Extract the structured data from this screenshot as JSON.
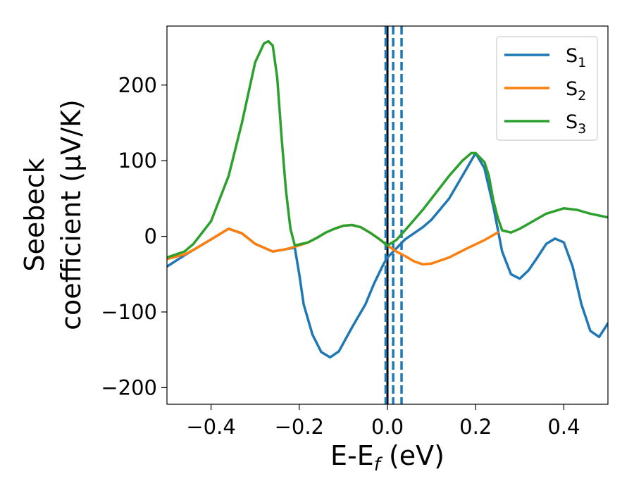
{
  "chart_data": {
    "type": "line",
    "title": "",
    "xlabel": "E-E",
    "xlabel_sub": "f",
    "xlabel_unit": " (eV)",
    "ylabel_line1": "Seebeck",
    "ylabel_line2": "coefficient  (μV/K)",
    "xlim": [
      -0.5,
      0.5
    ],
    "ylim": [
      -222,
      278
    ],
    "x_ticks": [
      -0.4,
      -0.2,
      0.0,
      0.2,
      0.4
    ],
    "x_tick_labels": [
      "−0.4",
      "−0.2",
      "0.0",
      "0.2",
      "0.4"
    ],
    "y_ticks": [
      -200,
      -100,
      0,
      100,
      200
    ],
    "y_tick_labels": [
      "−200",
      "−100",
      "0",
      "100",
      "200"
    ],
    "grid": false,
    "legend_position": "top-right",
    "vertical_lines": [
      {
        "x": 0.0,
        "style": "solid",
        "color": "#000000"
      },
      {
        "x": -0.004,
        "style": "dashed",
        "color": "#1f77b4"
      },
      {
        "x": 0.013,
        "style": "dashed",
        "color": "#1f77b4"
      },
      {
        "x": 0.032,
        "style": "dashed",
        "color": "#1f77b4"
      }
    ],
    "series": [
      {
        "name": "S",
        "name_sub": "1",
        "color": "#1f77b4",
        "points": [
          [
            -0.5,
            -40
          ],
          [
            -0.46,
            -25
          ],
          [
            -0.44,
            -18
          ],
          [
            -0.4,
            -4
          ],
          [
            -0.36,
            10
          ],
          [
            -0.33,
            4
          ],
          [
            -0.3,
            -10
          ],
          [
            -0.26,
            -20
          ],
          [
            -0.23,
            -17
          ],
          [
            -0.21,
            -15
          ],
          [
            -0.2,
            -50
          ],
          [
            -0.19,
            -90
          ],
          [
            -0.17,
            -130
          ],
          [
            -0.15,
            -153
          ],
          [
            -0.13,
            -160
          ],
          [
            -0.11,
            -152
          ],
          [
            -0.08,
            -120
          ],
          [
            -0.05,
            -90
          ],
          [
            -0.03,
            -62
          ],
          [
            -0.01,
            -38
          ],
          [
            0.0,
            -28
          ],
          [
            0.02,
            -16
          ],
          [
            0.04,
            -4
          ],
          [
            0.08,
            12
          ],
          [
            0.1,
            22
          ],
          [
            0.14,
            50
          ],
          [
            0.18,
            90
          ],
          [
            0.2,
            110
          ],
          [
            0.22,
            90
          ],
          [
            0.24,
            40
          ],
          [
            0.25,
            10
          ],
          [
            0.26,
            -20
          ],
          [
            0.28,
            -50
          ],
          [
            0.3,
            -56
          ],
          [
            0.32,
            -45
          ],
          [
            0.34,
            -28
          ],
          [
            0.36,
            -10
          ],
          [
            0.38,
            -3
          ],
          [
            0.4,
            -8
          ],
          [
            0.42,
            -40
          ],
          [
            0.44,
            -90
          ],
          [
            0.46,
            -125
          ],
          [
            0.48,
            -133
          ],
          [
            0.5,
            -115
          ]
        ]
      },
      {
        "name": "S",
        "name_sub": "2",
        "color": "#ff7f0e",
        "points": [
          [
            -0.5,
            -30
          ],
          [
            -0.46,
            -24
          ],
          [
            -0.44,
            -18
          ],
          [
            -0.4,
            -4
          ],
          [
            -0.36,
            10
          ],
          [
            -0.33,
            4
          ],
          [
            -0.3,
            -10
          ],
          [
            -0.26,
            -20
          ],
          [
            -0.23,
            -17
          ],
          [
            -0.2,
            -12
          ],
          [
            -0.18,
            -8
          ],
          [
            -0.16,
            -2
          ],
          [
            -0.14,
            5
          ],
          [
            -0.12,
            10
          ],
          [
            -0.1,
            14
          ],
          [
            -0.08,
            15
          ],
          [
            -0.06,
            12
          ],
          [
            -0.04,
            5
          ],
          [
            -0.02,
            -3
          ],
          [
            0.0,
            -12
          ],
          [
            0.02,
            -20
          ],
          [
            0.04,
            -26
          ],
          [
            0.06,
            -33
          ],
          [
            0.08,
            -37
          ],
          [
            0.1,
            -36
          ],
          [
            0.14,
            -28
          ],
          [
            0.18,
            -16
          ],
          [
            0.22,
            -5
          ],
          [
            0.25,
            5
          ]
        ]
      },
      {
        "name": "S",
        "name_sub": "3",
        "color": "#2ca02c",
        "points": [
          [
            -0.5,
            -28
          ],
          [
            -0.46,
            -20
          ],
          [
            -0.44,
            -10
          ],
          [
            -0.4,
            20
          ],
          [
            -0.36,
            80
          ],
          [
            -0.33,
            150
          ],
          [
            -0.3,
            230
          ],
          [
            -0.28,
            255
          ],
          [
            -0.27,
            258
          ],
          [
            -0.26,
            252
          ],
          [
            -0.25,
            210
          ],
          [
            -0.24,
            130
          ],
          [
            -0.23,
            60
          ],
          [
            -0.22,
            10
          ],
          [
            -0.21,
            -12
          ],
          [
            -0.18,
            -8
          ],
          [
            -0.16,
            -2
          ],
          [
            -0.14,
            5
          ],
          [
            -0.12,
            10
          ],
          [
            -0.1,
            14
          ],
          [
            -0.08,
            15
          ],
          [
            -0.06,
            12
          ],
          [
            -0.04,
            5
          ],
          [
            -0.02,
            -3
          ],
          [
            0.0,
            -12
          ],
          [
            0.02,
            -5
          ],
          [
            0.04,
            8
          ],
          [
            0.08,
            35
          ],
          [
            0.1,
            50
          ],
          [
            0.14,
            80
          ],
          [
            0.17,
            100
          ],
          [
            0.19,
            110
          ],
          [
            0.2,
            110
          ],
          [
            0.22,
            98
          ],
          [
            0.23,
            80
          ],
          [
            0.24,
            48
          ],
          [
            0.25,
            25
          ],
          [
            0.26,
            8
          ],
          [
            0.28,
            5
          ],
          [
            0.3,
            10
          ],
          [
            0.33,
            20
          ],
          [
            0.36,
            30
          ],
          [
            0.4,
            37
          ],
          [
            0.43,
            35
          ],
          [
            0.46,
            30
          ],
          [
            0.5,
            25
          ]
        ]
      }
    ]
  }
}
